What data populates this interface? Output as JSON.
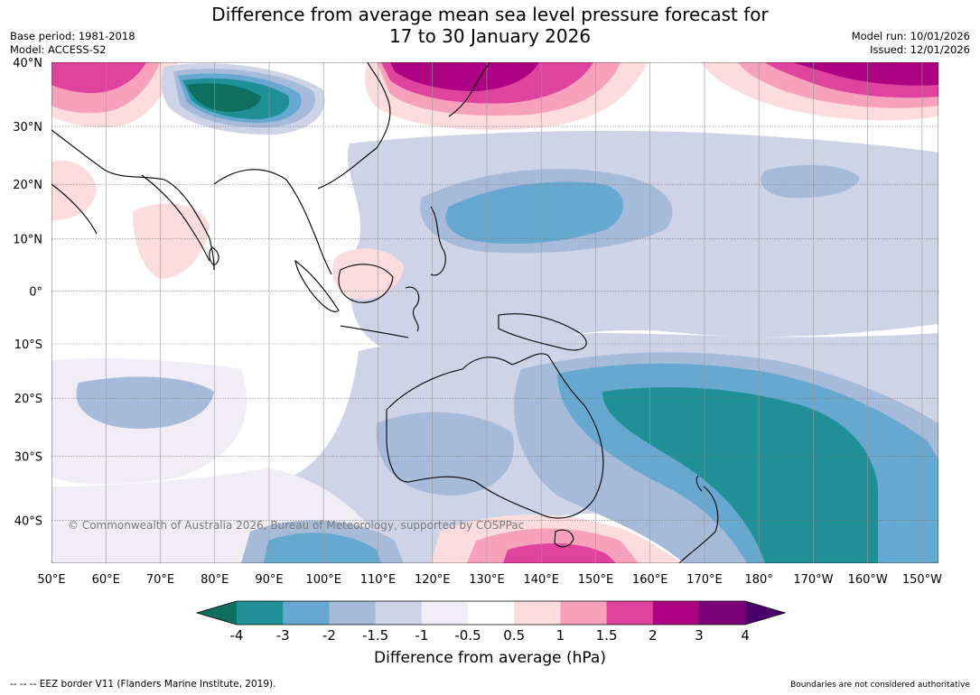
{
  "header": {
    "title_line1": "Difference from average mean sea level pressure forecast for",
    "title_line2": "17 to 30 January 2026",
    "base_period": "Base period: 1981-2018",
    "model": "Model: ACCESS-S2",
    "model_run": "Model run: 10/01/2026",
    "issued": "Issued: 12/01/2026"
  },
  "map": {
    "lat_labels": [
      "40°N",
      "30°N",
      "20°N",
      "10°N",
      "0°",
      "10°S",
      "20°S",
      "30°S",
      "40°S"
    ],
    "lon_labels": [
      "50°E",
      "60°E",
      "70°E",
      "80°E",
      "90°E",
      "100°E",
      "110°E",
      "120°E",
      "130°E",
      "140°E",
      "150°E",
      "160°E",
      "170°E",
      "180°",
      "170°W",
      "160°W",
      "150°W"
    ],
    "lat_range": [
      -46,
      40
    ],
    "lon_range": [
      50,
      213
    ],
    "copyright": "© Commonwealth of Australia 2026, Bureau of Meteorology, supported by COSPPac"
  },
  "colorbar": {
    "labels": [
      "-4",
      "-3",
      "-2",
      "-1.5",
      "-1",
      "-0.5",
      "0.5",
      "1",
      "1.5",
      "2",
      "3",
      "4"
    ],
    "colors": [
      "#0e6f60",
      "#1e9096",
      "#66a8cf",
      "#a6bbd9",
      "#cfd3e8",
      "#f1edf5",
      "#ffffff",
      "#fcdcdc",
      "#f7a1bd",
      "#e0439e",
      "#ad0383",
      "#7a0177",
      "#4a006b"
    ],
    "title": "Difference from average (hPa)"
  },
  "footer": {
    "eez": "--  --  -- EEZ border V11 (Flanders Marine Institute, 2019).",
    "boundaries": "Boundaries are not considered authoritative"
  }
}
